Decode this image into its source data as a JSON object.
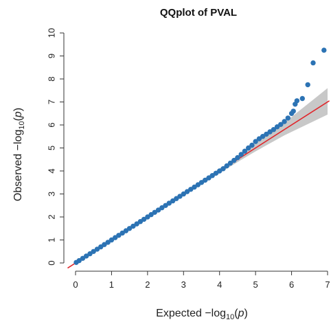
{
  "chart_data": {
    "type": "scatter",
    "title": "QQplot of PVAL",
    "xlabel": {
      "prefix": "Expected  −log",
      "sub": "10",
      "var": "p"
    },
    "ylabel": {
      "prefix": "Observed  −log",
      "sub": "10",
      "var": "p"
    },
    "xlim": [
      0,
      7
    ],
    "ylim": [
      0,
      10
    ],
    "x_ticks": [
      0,
      1,
      2,
      3,
      4,
      5,
      6,
      7
    ],
    "y_ticks": [
      0,
      1,
      2,
      3,
      4,
      5,
      6,
      7,
      8,
      9,
      10
    ],
    "grid": false,
    "colors": {
      "points": "#2c73b4",
      "reference_line": "#e0262b",
      "confidence_band": "#c8c8c8"
    },
    "reference_line": {
      "slope": 1,
      "intercept": 0
    },
    "confidence_band": {
      "x": [
        0,
        4.2,
        4.6,
        5.0,
        5.4,
        5.8,
        6.2,
        6.6,
        7.0
      ],
      "lower": [
        0,
        4.1,
        4.48,
        4.85,
        5.2,
        5.55,
        5.85,
        6.15,
        6.45
      ],
      "upper": [
        0,
        4.3,
        4.75,
        5.2,
        5.65,
        6.1,
        6.6,
        7.1,
        7.6
      ]
    },
    "series": [
      {
        "expected": [
          0.02,
          0.1,
          0.2,
          0.3,
          0.4,
          0.5,
          0.6,
          0.7,
          0.8,
          0.9,
          1.0,
          1.1,
          1.2,
          1.3,
          1.4,
          1.5,
          1.6,
          1.7,
          1.8,
          1.9,
          2.0,
          2.1,
          2.2,
          2.3,
          2.4,
          2.5,
          2.6,
          2.7,
          2.8,
          2.9,
          3.0,
          3.1,
          3.2,
          3.3,
          3.4,
          3.5,
          3.6,
          3.7,
          3.8,
          3.9,
          4.0,
          4.1,
          4.2,
          4.3,
          4.4,
          4.5,
          4.6,
          4.7,
          4.8,
          4.9,
          5.0,
          5.1,
          5.2,
          5.3,
          5.4,
          5.5,
          5.6,
          5.7,
          5.8,
          5.9,
          6.0,
          6.05,
          6.1,
          6.15,
          6.3,
          6.45,
          6.6,
          6.9
        ],
        "observed": [
          0.02,
          0.1,
          0.2,
          0.3,
          0.4,
          0.5,
          0.6,
          0.7,
          0.8,
          0.9,
          1.0,
          1.1,
          1.2,
          1.3,
          1.4,
          1.5,
          1.6,
          1.7,
          1.8,
          1.9,
          2.0,
          2.1,
          2.2,
          2.3,
          2.4,
          2.5,
          2.6,
          2.7,
          2.8,
          2.9,
          3.0,
          3.1,
          3.2,
          3.3,
          3.4,
          3.5,
          3.6,
          3.7,
          3.8,
          3.9,
          4.0,
          4.1,
          4.22,
          4.34,
          4.46,
          4.58,
          4.72,
          4.86,
          5.0,
          5.12,
          5.28,
          5.4,
          5.5,
          5.6,
          5.7,
          5.8,
          5.92,
          6.02,
          6.15,
          6.3,
          6.5,
          6.6,
          6.9,
          7.05,
          7.15,
          7.75,
          8.7,
          9.25
        ]
      }
    ]
  }
}
